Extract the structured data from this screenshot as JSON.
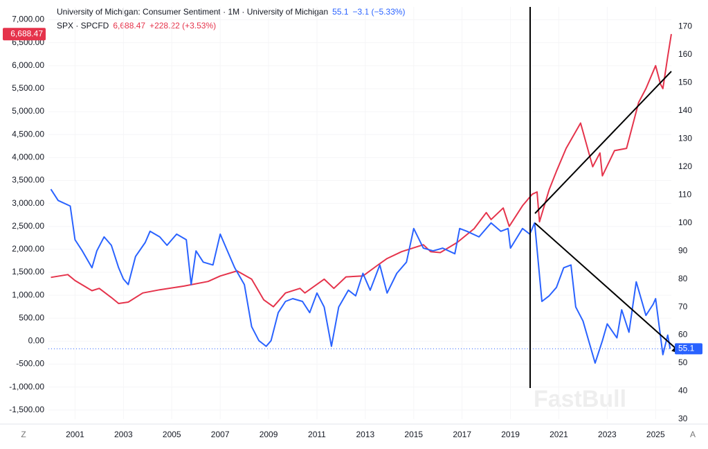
{
  "chart_data": {
    "type": "line",
    "header": [
      {
        "last": "55.1",
        "change": "−3.1 (−5.33%)"
      },
      {
        "last": "6,688.47",
        "change": "+228.22 (+3.53%)"
      }
    ],
    "corner_left": "Z",
    "corner_right": "A",
    "watermark": "FastBull",
    "xlim": [
      1999.9,
      2025.65
    ],
    "xticks": [
      2001,
      2003,
      2005,
      2007,
      2009,
      2011,
      2013,
      2015,
      2017,
      2019,
      2021,
      2023,
      2025
    ],
    "ylim": [
      -1700,
      7280
    ],
    "yticks": [
      {
        "value": 7000,
        "label": "7,000.00"
      },
      {
        "value": 6500,
        "label": "6,500.00"
      },
      {
        "value": 6000,
        "label": "6,000.00"
      },
      {
        "value": 5500,
        "label": "5,500.00"
      },
      {
        "value": 5000,
        "label": "5,000.00"
      },
      {
        "value": 4500,
        "label": "4,500.00"
      },
      {
        "value": 4000,
        "label": "4,000.00"
      },
      {
        "value": 3500,
        "label": "3,500.00"
      },
      {
        "value": 3000,
        "label": "3,000.00"
      },
      {
        "value": 2500,
        "label": "2,500.00"
      },
      {
        "value": 2000,
        "label": "2,000.00"
      },
      {
        "value": 1500,
        "label": "1,500.00"
      },
      {
        "value": 1000,
        "label": "1,000.00"
      },
      {
        "value": 500,
        "label": "500.00"
      },
      {
        "value": 0,
        "label": "0.00"
      },
      {
        "value": -500,
        "label": "-500.00"
      },
      {
        "value": -1000,
        "label": "-1,000.00"
      },
      {
        "value": -1500,
        "label": "-1,500.00"
      }
    ],
    "y2lim": [
      30,
      177
    ],
    "y2ticks": [
      30,
      40,
      50,
      60,
      70,
      80,
      90,
      100,
      110,
      120,
      130,
      140,
      150,
      160,
      170
    ],
    "series": [
      {
        "name": "University of Michigan: Consumer Sentiment · 1M · University of Michigan",
        "color": "#2962ff",
        "axis": "y2",
        "x": [
          2000.0,
          2000.3,
          2000.8,
          2001.0,
          2001.3,
          2001.7,
          2001.9,
          2002.2,
          2002.5,
          2002.8,
          2003.0,
          2003.2,
          2003.5,
          2003.9,
          2004.1,
          2004.5,
          2004.8,
          2005.2,
          2005.6,
          2005.8,
          2006.0,
          2006.3,
          2006.7,
          2007.0,
          2007.3,
          2007.6,
          2008.0,
          2008.3,
          2008.6,
          2008.9,
          2009.1,
          2009.4,
          2009.7,
          2010.0,
          2010.4,
          2010.7,
          2011.0,
          2011.3,
          2011.6,
          2011.9,
          2012.3,
          2012.6,
          2012.9,
          2013.2,
          2013.6,
          2013.9,
          2014.3,
          2014.7,
          2015.0,
          2015.4,
          2015.8,
          2016.2,
          2016.7,
          2016.9,
          2017.2,
          2017.7,
          2018.2,
          2018.6,
          2018.9,
          2019.0,
          2019.5,
          2019.8,
          2020.0,
          2020.3,
          2020.6,
          2020.9,
          2021.2,
          2021.5,
          2021.7,
          2022.0,
          2022.5,
          2022.8,
          2023.0,
          2023.4,
          2023.6,
          2023.9,
          2024.2,
          2024.6,
          2024.9,
          2025.0,
          2025.3,
          2025.5,
          2025.6
        ],
        "values": [
          112,
          108,
          106,
          94,
          90,
          84,
          90,
          95,
          92,
          84,
          80,
          78,
          88,
          93,
          97,
          95,
          92,
          96,
          94,
          78,
          90,
          86,
          85,
          96,
          90,
          84,
          78,
          63,
          58,
          56,
          58,
          68,
          72,
          73,
          72,
          68,
          75,
          70,
          56,
          70,
          76,
          74,
          82,
          76,
          85,
          75,
          82,
          86,
          98,
          91,
          90,
          91,
          89,
          98,
          97,
          95,
          100,
          97,
          98,
          91,
          98,
          96,
          100,
          72,
          74,
          77,
          84,
          85,
          70,
          65,
          50,
          58,
          64,
          59,
          69,
          61,
          79,
          67,
          71,
          73,
          53,
          60,
          55.1
        ]
      },
      {
        "name": "SPX · SPCFD",
        "color": "#e5334b",
        "axis": "y",
        "x": [
          2000.0,
          2000.7,
          2001.0,
          2001.7,
          2002.0,
          2002.5,
          2002.8,
          2003.2,
          2003.8,
          2004.5,
          2005.5,
          2006.5,
          2007.0,
          2007.7,
          2008.3,
          2008.8,
          2009.2,
          2009.7,
          2010.3,
          2010.5,
          2011.3,
          2011.7,
          2012.2,
          2012.9,
          2013.5,
          2013.9,
          2014.5,
          2015.4,
          2015.7,
          2016.1,
          2016.8,
          2017.5,
          2018.0,
          2018.2,
          2018.7,
          2018.95,
          2019.5,
          2019.9,
          2020.1,
          2020.2,
          2020.6,
          2020.9,
          2021.3,
          2021.9,
          2022.4,
          2022.7,
          2022.8,
          2023.3,
          2023.8,
          2024.3,
          2024.6,
          2025.0,
          2025.2,
          2025.3,
          2025.5,
          2025.65
        ],
        "values": [
          1390,
          1450,
          1320,
          1100,
          1150,
          950,
          820,
          850,
          1050,
          1120,
          1200,
          1300,
          1420,
          1530,
          1350,
          900,
          750,
          1050,
          1150,
          1050,
          1350,
          1150,
          1400,
          1420,
          1650,
          1800,
          1950,
          2100,
          1950,
          1930,
          2150,
          2450,
          2800,
          2650,
          2900,
          2500,
          2950,
          3200,
          3250,
          2600,
          3300,
          3700,
          4200,
          4750,
          3800,
          4100,
          3600,
          4150,
          4200,
          5200,
          5500,
          6000,
          5600,
          5500,
          6200,
          6688.47
        ]
      }
    ]
  }
}
